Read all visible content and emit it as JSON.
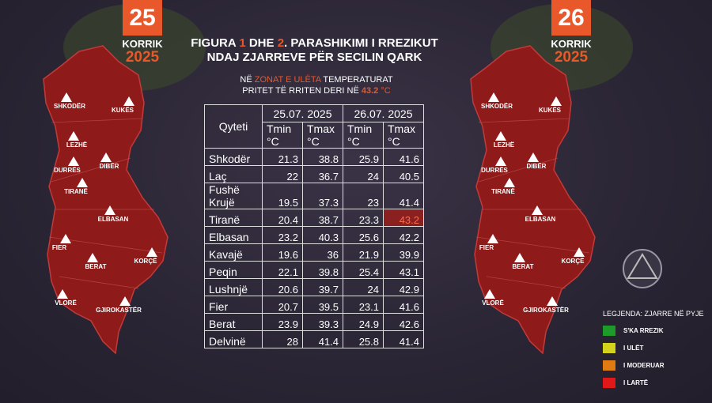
{
  "left_badge": {
    "day": "25",
    "month": "KORRIK",
    "year": "2025"
  },
  "right_badge": {
    "day": "26",
    "month": "KORRIK",
    "year": "2025"
  },
  "title": {
    "line1": [
      "FIGURA ",
      "1",
      " DHE ",
      "2",
      ". PARASHIKIMI I RREZIKUT"
    ],
    "line2": "NDAJ ZJARREVE PËR SECILIN QARK"
  },
  "subtitle": {
    "line1": [
      "NË ",
      "ZONAT E ULËTA",
      " TEMPERATURAT"
    ],
    "line2": [
      "PRITET TË RRITEN DERI NË ",
      "43.2",
      " °C"
    ]
  },
  "table": {
    "city_header": "Qyteti",
    "dates": [
      "25.07. 2025",
      "26.07. 2025"
    ],
    "subheaders": [
      "Tmin °C",
      "Tmax °C",
      "Tmin °C",
      "Tmax °C"
    ],
    "rows": [
      [
        "Shkodër",
        21.3,
        38.8,
        25.9,
        41.6
      ],
      [
        "Laç",
        22,
        36.7,
        24,
        40.5
      ],
      [
        "Fushë Krujë",
        19.5,
        37.3,
        23,
        41.4
      ],
      [
        "Tiranë",
        20.4,
        38.7,
        23.3,
        43.2
      ],
      [
        "Elbasan",
        23.2,
        40.3,
        25.6,
        42.2
      ],
      [
        "Kavajë",
        19.6,
        36,
        21.9,
        39.9
      ],
      [
        "Peqin",
        22.1,
        39.8,
        25.4,
        43.1
      ],
      [
        "Lushnjë",
        20.6,
        39.7,
        24,
        42.9
      ],
      [
        "Fier",
        20.7,
        39.5,
        23.1,
        41.6
      ],
      [
        "Berat",
        23.9,
        39.3,
        24.9,
        42.6
      ],
      [
        "Delvinë",
        28,
        41.4,
        25.8,
        41.4
      ]
    ]
  },
  "map_labels": [
    "SHKODËR",
    "KUKËS",
    "LEZHË",
    "DURRËS",
    "DIBËR",
    "TIRANË",
    "ELBASAN",
    "FIER",
    "BERAT",
    "KORÇË",
    "VLORË",
    "GJIROKASTËR"
  ],
  "legend": {
    "title": "LEGJENDA: ZJARRE NË PYJE",
    "items": [
      "S'KA RREZIK",
      "I ULËT",
      "I MODERUAR",
      "I LARTË"
    ]
  }
}
